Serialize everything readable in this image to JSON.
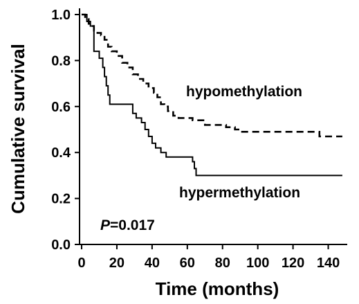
{
  "chart_data": {
    "type": "line",
    "xlabel": "Time (months)",
    "ylabel": "Cumulative survival",
    "xlim": [
      0,
      150
    ],
    "ylim": [
      0,
      1
    ],
    "xticks": [
      "0",
      "20",
      "40",
      "60",
      "80",
      "100",
      "120",
      "140"
    ],
    "yticks": [
      "0.0",
      "0.2",
      "0.4",
      "0.6",
      "0.8",
      "1.0"
    ],
    "grid": false,
    "step": true,
    "series": [
      {
        "name": "hypomethylation",
        "style": "dashed",
        "x": [
          0,
          2,
          4,
          5,
          7,
          9,
          11,
          13,
          15,
          17,
          20,
          23,
          26,
          29,
          32,
          35,
          38,
          41,
          43,
          45,
          47,
          49,
          52,
          55,
          58,
          63,
          70,
          75,
          78,
          82,
          87,
          90,
          120,
          135,
          148
        ],
        "y": [
          1.0,
          0.98,
          0.96,
          0.95,
          0.93,
          0.92,
          0.91,
          0.89,
          0.86,
          0.84,
          0.82,
          0.79,
          0.77,
          0.74,
          0.72,
          0.7,
          0.68,
          0.66,
          0.64,
          0.61,
          0.6,
          0.58,
          0.56,
          0.55,
          0.55,
          0.54,
          0.52,
          0.52,
          0.52,
          0.51,
          0.5,
          0.49,
          0.49,
          0.47,
          0.47
        ]
      },
      {
        "name": "hypermethylation",
        "style": "solid",
        "x": [
          0,
          3,
          5,
          7,
          10,
          12,
          13,
          14,
          15,
          16,
          27,
          29,
          31,
          34,
          36,
          38,
          40,
          42,
          45,
          48,
          53,
          57,
          60,
          63,
          64,
          65,
          148
        ],
        "y": [
          1.0,
          0.97,
          0.95,
          0.84,
          0.81,
          0.77,
          0.73,
          0.69,
          0.65,
          0.61,
          0.61,
          0.57,
          0.55,
          0.53,
          0.5,
          0.47,
          0.44,
          0.42,
          0.4,
          0.38,
          0.38,
          0.38,
          0.38,
          0.36,
          0.33,
          0.3,
          0.3
        ]
      }
    ],
    "annotations": {
      "hypomethylation_label": "hypomethylation",
      "hypermethylation_label": "hypermethylation",
      "p_italic": "P",
      "p_value": "=0.017"
    }
  }
}
